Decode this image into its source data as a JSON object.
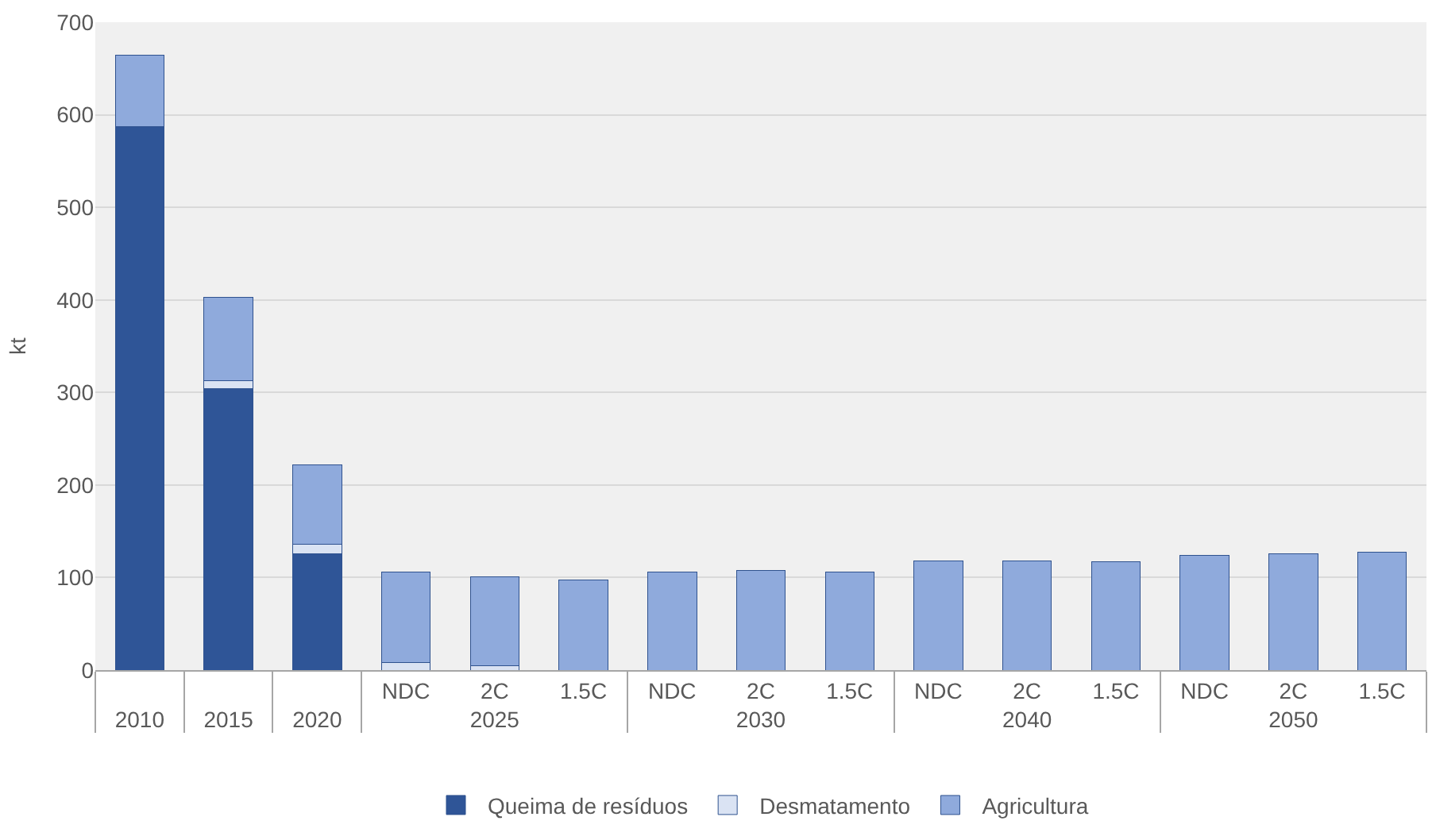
{
  "chart_data": {
    "type": "bar",
    "stacked": true,
    "ylabel": "kt",
    "categories": [
      null,
      null,
      null,
      "NDC",
      "2C",
      "1.5C",
      "NDC",
      "2C",
      "1.5C",
      "NDC",
      "2C",
      "1.5C",
      "NDC",
      "2C",
      "1.5C"
    ],
    "annotations": [
      "2010",
      "2015",
      "2020",
      "2025",
      "2030",
      "2040",
      "2050"
    ],
    "series": [
      {
        "name": "Queima de resíduos",
        "color": "#2f5597",
        "values": [
          587,
          304,
          126,
          0,
          0,
          0,
          0,
          0,
          0,
          0,
          0,
          0,
          0,
          0,
          0
        ]
      },
      {
        "name": "Desmatamento",
        "color": "#dae3f3",
        "values": [
          0,
          9,
          10,
          8,
          5,
          0,
          0,
          0,
          0,
          0,
          0,
          0,
          0,
          0,
          0
        ]
      },
      {
        "name": "Agricultura",
        "color": "#8faadc",
        "values": [
          77,
          90,
          86,
          98,
          96,
          97,
          106,
          108,
          106,
          118,
          118,
          117,
          124,
          126,
          127
        ]
      }
    ],
    "ylim": [
      0,
      700
    ],
    "yticks": [
      0,
      100,
      200,
      300,
      400,
      500,
      600,
      700
    ],
    "grid": "y",
    "legend": "bottom"
  }
}
